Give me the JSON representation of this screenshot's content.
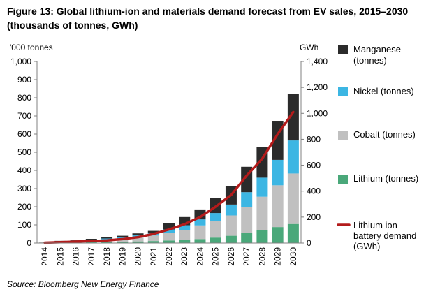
{
  "title": "Figure 13: Global lithium-ion and materials demand forecast from EV sales, 2015–2030 (thousands of tonnes, GWh)",
  "source": "Source: Bloomberg New Energy Finance",
  "chart_data": {
    "type": "bar",
    "stacked": true,
    "categories": [
      "2014",
      "2015",
      "2016",
      "2017",
      "2018",
      "2019",
      "2020",
      "2021",
      "2022",
      "2023",
      "2024",
      "2025",
      "2026",
      "2027",
      "2028",
      "2029",
      "2030"
    ],
    "left_axis": {
      "label": "'000 tonnes",
      "ylim": [
        0,
        1000
      ],
      "ticks": [
        "0",
        "100",
        "200",
        "300",
        "400",
        "500",
        "600",
        "700",
        "800",
        "900",
        "1,000"
      ]
    },
    "right_axis": {
      "label": "GWh",
      "ylim": [
        0,
        1400
      ],
      "ticks": [
        "0",
        "200",
        "400",
        "600",
        "800",
        "1,000",
        "1,200",
        "1,400"
      ]
    },
    "series": [
      {
        "name": "Lithium (tonnes)",
        "color": "#4aa87a",
        "values": [
          2,
          3,
          4,
          5,
          6,
          7,
          9,
          11,
          14,
          17,
          22,
          30,
          40,
          55,
          70,
          88,
          105
        ]
      },
      {
        "name": "Cobalt (tonnes)",
        "color": "#c0c0c0",
        "values": [
          3,
          5,
          7,
          10,
          13,
          17,
          22,
          30,
          42,
          56,
          75,
          90,
          112,
          145,
          185,
          230,
          278
        ]
      },
      {
        "name": "Nickel (tonnes)",
        "color": "#3cb6e3",
        "values": [
          1,
          2,
          3,
          4,
          6,
          8,
          11,
          14,
          19,
          25,
          33,
          45,
          60,
          80,
          105,
          140,
          182
        ]
      },
      {
        "name": "Manganese (tonnes)",
        "color": "#2b2b2b",
        "values": [
          1,
          2,
          3,
          4,
          6,
          8,
          11,
          12,
          35,
          45,
          55,
          85,
          100,
          140,
          170,
          215,
          255
        ]
      }
    ],
    "line": {
      "name": "Lithium ion battery demand (GWh)",
      "color": "#b31b1b",
      "axis": "right",
      "values": [
        3,
        7,
        11,
        15,
        20,
        30,
        45,
        70,
        105,
        145,
        200,
        280,
        370,
        520,
        650,
        840,
        1010
      ]
    },
    "legend": "right",
    "grid": false
  }
}
